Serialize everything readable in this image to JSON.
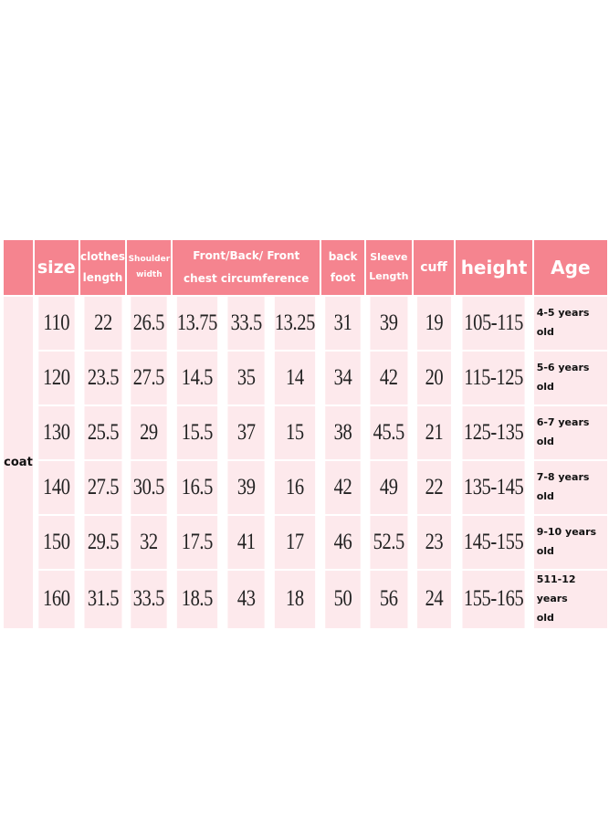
{
  "colors": {
    "header": "#f5848f",
    "body": "#fde9ec"
  },
  "headers": {
    "size": "size",
    "clothes_length_1": "clothes",
    "clothes_length_2": "length",
    "shoulder_1": "Shoulder",
    "shoulder_2": "width",
    "front_back_1": "Front/Back/ Front",
    "front_back_2": "chest circumference",
    "back_foot_1": "back",
    "back_foot_2": "foot",
    "sleeve_1": "Sleeve",
    "sleeve_2": "Length",
    "cuff": "cuff",
    "height": "height",
    "age": "Age"
  },
  "category": "coat",
  "rows": [
    {
      "c": [
        "110",
        "22",
        "26.5",
        "13.75",
        "33.5",
        "13.25",
        "31",
        "39",
        "19",
        "105-115"
      ],
      "age1": "4-5 years",
      "age2": "old"
    },
    {
      "c": [
        "120",
        "23.5",
        "27.5",
        "14.5",
        "35",
        "14",
        "34",
        "42",
        "20",
        "115-125"
      ],
      "age1": "5-6 years",
      "age2": "old"
    },
    {
      "c": [
        "130",
        "25.5",
        "29",
        "15.5",
        "37",
        "15",
        "38",
        "45.5",
        "21",
        "125-135"
      ],
      "age1": "6-7 years",
      "age2": "old"
    },
    {
      "c": [
        "140",
        "27.5",
        "30.5",
        "16.5",
        "39",
        "16",
        "42",
        "49",
        "22",
        "135-145"
      ],
      "age1": "7-8 years",
      "age2": "old"
    },
    {
      "c": [
        "150",
        "29.5",
        "32",
        "17.5",
        "41",
        "17",
        "46",
        "52.5",
        "23",
        "145-155"
      ],
      "age1": "9-10 years",
      "age2": "old"
    },
    {
      "c": [
        "160",
        "31.5",
        "33.5",
        "18.5",
        "43",
        "18",
        "50",
        "56",
        "24",
        "155-165"
      ],
      "age1": "511-12 years",
      "age2": "old"
    }
  ]
}
